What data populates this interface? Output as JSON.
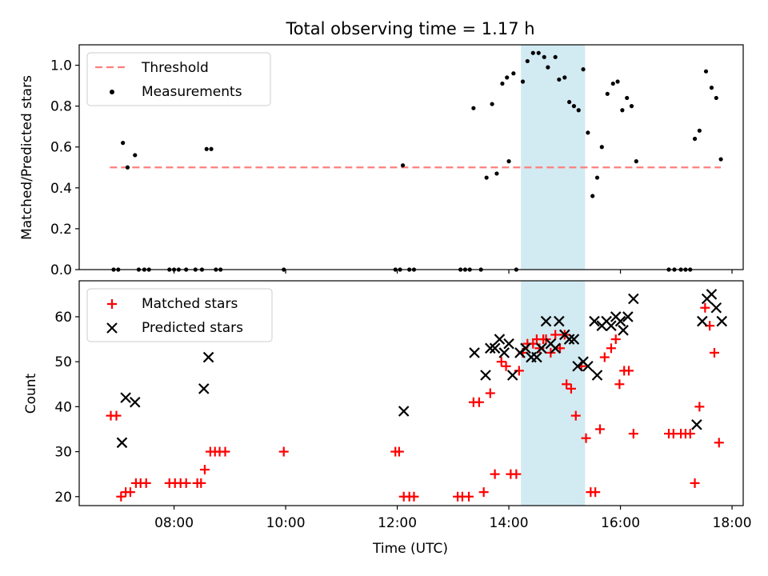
{
  "title": "Total observing time = 1.17 h",
  "chart_data": [
    {
      "type": "scatter",
      "title": "Total observing time = 1.17 h",
      "xlabel": "",
      "ylabel": "Matched/Predicted stars",
      "xlim_hours": [
        6.3,
        18.2
      ],
      "ylim": [
        0,
        1.1
      ],
      "yticks": [
        "0.0",
        "0.2",
        "0.4",
        "0.6",
        "0.8",
        "1.0"
      ],
      "grid": false,
      "legend_location": "upper-left",
      "legend": [
        "Threshold",
        "Measurements"
      ],
      "threshold": {
        "name": "Threshold",
        "value": 0.5,
        "x_range": [
          6.85,
          17.8
        ],
        "color": "#ff7f7f"
      },
      "highlight_span": {
        "x_range": [
          "14:13",
          "15:22"
        ],
        "color": "#add8e6"
      },
      "series": [
        {
          "name": "Measurements",
          "color": "#000000",
          "points": [
            [
              "06:55",
              0
            ],
            [
              "07:00",
              0
            ],
            [
              "07:05",
              0.62
            ],
            [
              "07:10",
              0.5
            ],
            [
              "07:18",
              0.56
            ],
            [
              "07:22",
              0
            ],
            [
              "07:28",
              0
            ],
            [
              "07:33",
              0
            ],
            [
              "07:55",
              0
            ],
            [
              "08:00",
              0
            ],
            [
              "08:05",
              0
            ],
            [
              "08:13",
              0
            ],
            [
              "08:23",
              0
            ],
            [
              "08:30",
              0
            ],
            [
              "08:35",
              0.59
            ],
            [
              "08:40",
              0.59
            ],
            [
              "08:45",
              0
            ],
            [
              "08:50",
              0
            ],
            [
              "09:58",
              0
            ],
            [
              "11:58",
              0
            ],
            [
              "12:03",
              0
            ],
            [
              "12:06",
              0.51
            ],
            [
              "12:13",
              0
            ],
            [
              "12:18",
              0
            ],
            [
              "13:08",
              0
            ],
            [
              "13:13",
              0
            ],
            [
              "13:18",
              0
            ],
            [
              "13:22",
              0.79
            ],
            [
              "13:30",
              0
            ],
            [
              "13:36",
              0.45
            ],
            [
              "13:42",
              0.81
            ],
            [
              "13:47",
              0.47
            ],
            [
              "13:53",
              0.91
            ],
            [
              "13:58",
              0.94
            ],
            [
              "14:05",
              0.96
            ],
            [
              "14:00",
              0.53
            ],
            [
              "14:08",
              0
            ],
            [
              "14:15",
              0.92
            ],
            [
              "14:20",
              1.02
            ],
            [
              "14:26",
              1.06
            ],
            [
              "14:32",
              1.06
            ],
            [
              "14:38",
              1.04
            ],
            [
              "14:42",
              0.99
            ],
            [
              "14:50",
              1.04
            ],
            [
              "14:54",
              0.93
            ],
            [
              "15:00",
              0.94
            ],
            [
              "15:05",
              0.82
            ],
            [
              "15:10",
              0.8
            ],
            [
              "15:15",
              0.78
            ],
            [
              "15:20",
              0.98
            ],
            [
              "15:25",
              0.67
            ],
            [
              "15:30",
              0.36
            ],
            [
              "15:35",
              0.45
            ],
            [
              "15:40",
              0.6
            ],
            [
              "15:46",
              0.86
            ],
            [
              "15:52",
              0.91
            ],
            [
              "15:57",
              0.92
            ],
            [
              "16:02",
              0.78
            ],
            [
              "16:07",
              0.84
            ],
            [
              "16:12",
              0.8
            ],
            [
              "16:17",
              0.53
            ],
            [
              "16:52",
              0
            ],
            [
              "16:58",
              0
            ],
            [
              "17:05",
              0
            ],
            [
              "17:10",
              0
            ],
            [
              "17:15",
              0
            ],
            [
              "17:20",
              0.64
            ],
            [
              "17:25",
              0.68
            ],
            [
              "17:32",
              0.97
            ],
            [
              "17:38",
              0.89
            ],
            [
              "17:43",
              0.84
            ],
            [
              "17:48",
              0.54
            ]
          ]
        }
      ]
    },
    {
      "type": "scatter",
      "title": "",
      "xlabel": "Time (UTC)",
      "ylabel": "Count",
      "xlim_hours": [
        6.3,
        18.2
      ],
      "ylim": [
        18,
        68
      ],
      "xticks": [
        "08:00",
        "10:00",
        "12:00",
        "14:00",
        "16:00",
        "18:00"
      ],
      "yticks": [
        "20",
        "30",
        "40",
        "50",
        "60"
      ],
      "grid": false,
      "legend_location": "upper-left",
      "legend": [
        "Matched stars",
        "Predicted stars"
      ],
      "highlight_span": {
        "x_range": [
          "14:13",
          "15:22"
        ],
        "color": "#add8e6"
      },
      "series": [
        {
          "name": "Matched stars",
          "marker": "plus",
          "color": "#ff0000",
          "points": [
            [
              "06:52",
              38
            ],
            [
              "06:58",
              38
            ],
            [
              "07:03",
              20
            ],
            [
              "07:08",
              21
            ],
            [
              "07:13",
              21
            ],
            [
              "07:19",
              23
            ],
            [
              "07:24",
              23
            ],
            [
              "07:30",
              23
            ],
            [
              "07:55",
              23
            ],
            [
              "08:01",
              23
            ],
            [
              "08:07",
              23
            ],
            [
              "08:13",
              23
            ],
            [
              "08:25",
              23
            ],
            [
              "08:29",
              23
            ],
            [
              "08:33",
              26
            ],
            [
              "08:39",
              30
            ],
            [
              "08:44",
              30
            ],
            [
              "08:49",
              30
            ],
            [
              "08:55",
              30
            ],
            [
              "09:58",
              30
            ],
            [
              "11:58",
              30
            ],
            [
              "12:02",
              30
            ],
            [
              "12:07",
              20
            ],
            [
              "12:13",
              20
            ],
            [
              "12:18",
              20
            ],
            [
              "13:05",
              20
            ],
            [
              "13:10",
              20
            ],
            [
              "13:17",
              20
            ],
            [
              "13:22",
              41
            ],
            [
              "13:28",
              41
            ],
            [
              "13:33",
              21
            ],
            [
              "13:40",
              43
            ],
            [
              "13:45",
              25
            ],
            [
              "13:52",
              50
            ],
            [
              "13:57",
              49
            ],
            [
              "14:02",
              25
            ],
            [
              "14:08",
              25
            ],
            [
              "14:11",
              48
            ],
            [
              "14:15",
              52
            ],
            [
              "14:20",
              54
            ],
            [
              "14:26",
              54
            ],
            [
              "14:30",
              55
            ],
            [
              "14:33",
              53
            ],
            [
              "14:37",
              55
            ],
            [
              "14:40",
              55
            ],
            [
              "14:45",
              52
            ],
            [
              "14:50",
              56
            ],
            [
              "14:55",
              53
            ],
            [
              "15:00",
              56
            ],
            [
              "15:02",
              45
            ],
            [
              "15:07",
              44
            ],
            [
              "15:12",
              38
            ],
            [
              "15:18",
              49
            ],
            [
              "15:23",
              33
            ],
            [
              "15:28",
              21
            ],
            [
              "15:33",
              21
            ],
            [
              "15:38",
              35
            ],
            [
              "15:43",
              51
            ],
            [
              "15:50",
              53
            ],
            [
              "15:55",
              55
            ],
            [
              "15:59",
              45
            ],
            [
              "16:04",
              48
            ],
            [
              "16:09",
              48
            ],
            [
              "16:14",
              34
            ],
            [
              "16:52",
              34
            ],
            [
              "16:57",
              34
            ],
            [
              "17:05",
              34
            ],
            [
              "17:10",
              34
            ],
            [
              "17:15",
              34
            ],
            [
              "17:20",
              23
            ],
            [
              "17:25",
              40
            ],
            [
              "17:31",
              62
            ],
            [
              "17:36",
              58
            ],
            [
              "17:41",
              52
            ],
            [
              "17:46",
              32
            ]
          ]
        },
        {
          "name": "Predicted stars",
          "marker": "x",
          "color": "#000000",
          "points": [
            [
              "07:04",
              32
            ],
            [
              "07:08",
              42
            ],
            [
              "07:18",
              41
            ],
            [
              "08:32",
              44
            ],
            [
              "08:37",
              51
            ],
            [
              "12:07",
              39
            ],
            [
              "13:23",
              52
            ],
            [
              "13:35",
              47
            ],
            [
              "13:40",
              53
            ],
            [
              "13:45",
              53
            ],
            [
              "13:50",
              55
            ],
            [
              "13:55",
              52
            ],
            [
              "14:00",
              54
            ],
            [
              "14:04",
              47
            ],
            [
              "14:12",
              52
            ],
            [
              "14:18",
              53
            ],
            [
              "14:24",
              51
            ],
            [
              "14:30",
              51
            ],
            [
              "14:35",
              53
            ],
            [
              "14:40",
              59
            ],
            [
              "14:45",
              54
            ],
            [
              "14:50",
              53
            ],
            [
              "14:54",
              59
            ],
            [
              "15:00",
              56
            ],
            [
              "15:05",
              55
            ],
            [
              "15:10",
              55
            ],
            [
              "15:14",
              49
            ],
            [
              "15:20",
              50
            ],
            [
              "15:25",
              49
            ],
            [
              "15:32",
              59
            ],
            [
              "15:35",
              47
            ],
            [
              "15:40",
              58
            ],
            [
              "15:45",
              59
            ],
            [
              "15:50",
              58
            ],
            [
              "15:55",
              60
            ],
            [
              "16:00",
              59
            ],
            [
              "16:03",
              57
            ],
            [
              "16:08",
              60
            ],
            [
              "16:14",
              64
            ],
            [
              "17:22",
              36
            ],
            [
              "17:28",
              59
            ],
            [
              "17:33",
              64
            ],
            [
              "17:38",
              65
            ],
            [
              "17:43",
              62
            ],
            [
              "17:49",
              59
            ]
          ]
        }
      ]
    }
  ]
}
